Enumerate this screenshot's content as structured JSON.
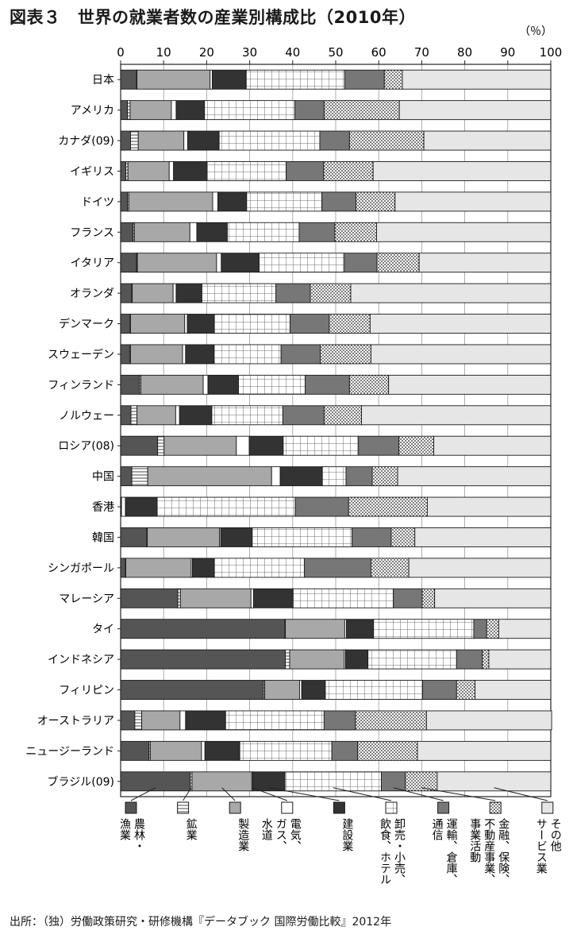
{
  "chart_data": {
    "type": "bar",
    "orientation": "horizontal",
    "stacked": true,
    "title": "図表３　世界の就業者数の産業別構成比（2010年）",
    "unit_label": "（％）",
    "xlim": [
      0,
      100
    ],
    "x_ticks": [
      "0",
      "10",
      "20",
      "30",
      "40",
      "50",
      "60",
      "70",
      "80",
      "90",
      "100"
    ],
    "grid": "vertical",
    "legend_position": "bottom",
    "source": "出所：（独）労働政策研究・研修機構『データブック 国際労働比較』2012年",
    "categories": [
      "日本",
      "アメリカ",
      "カナダ(09)",
      "イギリス",
      "ドイツ",
      "フランス",
      "イタリア",
      "オランダ",
      "デンマーク",
      "スウェーデン",
      "フィンランド",
      "ノルウェー",
      "ロシア(08)",
      "中国",
      "香港",
      "韓国",
      "シンガポール",
      "マレーシア",
      "タイ",
      "インドネシア",
      "フィリピン",
      "オーストラリア",
      "ニュージーランド",
      "ブラジル(09)"
    ],
    "series": [
      {
        "name": "農林・漁業",
        "values": [
          3.7,
          1.6,
          2.3,
          1.2,
          1.6,
          2.9,
          3.7,
          2.6,
          2.2,
          2.1,
          4.4,
          2.4,
          8.6,
          2.6,
          0.2,
          6.1,
          1.1,
          13.3,
          38.2,
          38.3,
          33.2,
          3.3,
          6.6,
          16.2
        ]
      },
      {
        "name": "鉱業",
        "values": [
          0.1,
          0.6,
          1.8,
          0.5,
          0.3,
          0.3,
          0.2,
          0.1,
          0.1,
          0.2,
          0.3,
          1.4,
          1.5,
          3.7,
          0.0,
          0.1,
          0.1,
          0.6,
          0.1,
          1.0,
          0.3,
          1.6,
          0.3,
          0.4
        ]
      },
      {
        "name": "製造業",
        "values": [
          17.0,
          9.6,
          10.6,
          9.6,
          19.5,
          12.9,
          18.4,
          9.5,
          12.6,
          12.1,
          14.5,
          9.0,
          16.8,
          28.8,
          0.0,
          16.8,
          15.2,
          16.4,
          13.8,
          12.7,
          8.1,
          8.9,
          11.9,
          13.9
        ]
      },
      {
        "name": "電気、ガス、水道",
        "values": [
          0.5,
          1.1,
          0.9,
          1.0,
          1.2,
          1.6,
          1.1,
          0.7,
          0.6,
          0.7,
          1.1,
          0.9,
          3.0,
          2.0,
          0.9,
          0.3,
          0.3,
          0.6,
          0.4,
          0.3,
          0.5,
          1.3,
          0.8,
          0.2
        ]
      },
      {
        "name": "建設業",
        "values": [
          7.9,
          6.6,
          7.3,
          7.8,
          6.7,
          7.1,
          8.8,
          6.0,
          6.3,
          6.6,
          7.1,
          7.5,
          7.9,
          9.8,
          7.4,
          7.3,
          5.1,
          9.2,
          6.3,
          5.2,
          5.5,
          9.3,
          8.1,
          7.5
        ]
      },
      {
        "name": "卸売・小売、飲食、ホテル",
        "values": [
          22.9,
          21.0,
          23.4,
          18.4,
          17.5,
          16.7,
          19.8,
          17.2,
          17.6,
          15.6,
          15.5,
          16.5,
          17.5,
          5.5,
          32.1,
          23.2,
          20.9,
          23.3,
          23.3,
          20.6,
          22.6,
          22.9,
          21.4,
          22.4
        ]
      },
      {
        "name": "運輸、倉庫、通信",
        "values": [
          9.2,
          6.8,
          6.9,
          8.7,
          7.9,
          8.3,
          7.6,
          8.0,
          9.1,
          9.1,
          10.3,
          9.6,
          9.4,
          6.1,
          12.4,
          9.1,
          15.5,
          6.7,
          3.0,
          6.0,
          7.9,
          7.3,
          6.0,
          5.6
        ]
      },
      {
        "name": "金融、保険、不動産事業、事業活動",
        "values": [
          4.2,
          17.5,
          17.3,
          11.5,
          9.1,
          9.7,
          9.8,
          9.4,
          9.5,
          11.8,
          9.1,
          8.7,
          8.1,
          5.9,
          18.3,
          5.5,
          8.8,
          2.9,
          2.8,
          1.5,
          4.3,
          16.5,
          13.9,
          7.4
        ]
      },
      {
        "name": "その他サービス業",
        "values": [
          34.5,
          35.2,
          29.5,
          41.3,
          36.2,
          40.5,
          30.6,
          46.5,
          42.0,
          41.8,
          37.7,
          44.0,
          27.2,
          35.6,
          28.7,
          31.6,
          33.0,
          27.0,
          12.1,
          14.4,
          17.6,
          29.1,
          31.0,
          26.4
        ]
      }
    ],
    "legend": [
      {
        "lines": [
          "農林・",
          "漁業"
        ]
      },
      {
        "lines": [
          "鉱業"
        ]
      },
      {
        "lines": [
          "製造業"
        ]
      },
      {
        "lines": [
          "電気、",
          "ガス、",
          "水道"
        ]
      },
      {
        "lines": [
          "建設業"
        ]
      },
      {
        "lines": [
          "卸売・小売、",
          "飲食、ホテル"
        ]
      },
      {
        "lines": [
          "運輸、倉庫、",
          "通信"
        ]
      },
      {
        "lines": [
          "金融、保険、",
          "不動産事業、",
          "事業活動"
        ]
      },
      {
        "lines": [
          "その他",
          "サービス業"
        ]
      }
    ],
    "series_styles": [
      {
        "fill": "#555555",
        "pattern": "solid"
      },
      {
        "fill": "#ffffff",
        "pattern": "hlines"
      },
      {
        "fill": "#a8a8a8",
        "pattern": "solid"
      },
      {
        "fill": "#ffffff",
        "pattern": "none"
      },
      {
        "fill": "#333333",
        "pattern": "solid"
      },
      {
        "fill": "#ffffff",
        "pattern": "grid"
      },
      {
        "fill": "#777777",
        "pattern": "solid"
      },
      {
        "fill": "#ffffff",
        "pattern": "dots"
      },
      {
        "fill": "#e6e6e6",
        "pattern": "solid"
      }
    ]
  }
}
